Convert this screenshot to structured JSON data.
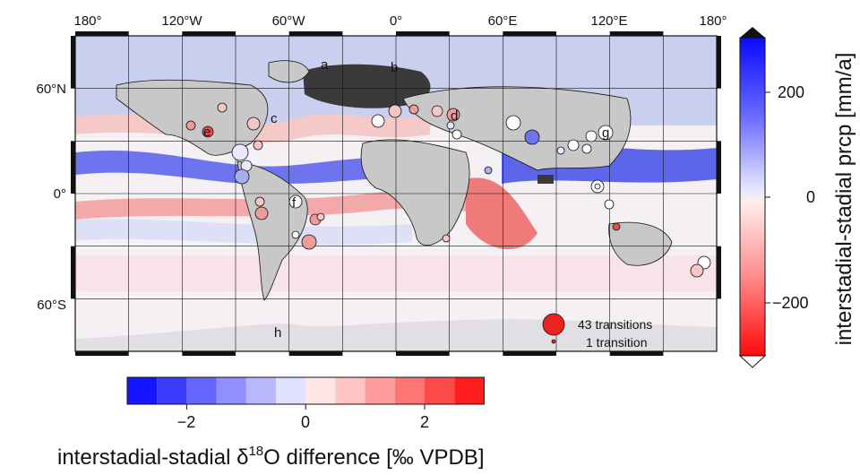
{
  "map": {
    "top_ticks": [
      "180°",
      "120°W",
      "60°W",
      "0°",
      "60°E",
      "120°E",
      "180°"
    ],
    "left_ticks": [
      "60°N",
      "0°",
      "60°S"
    ],
    "region_letters": [
      "a",
      "b",
      "c",
      "d",
      "e",
      "f",
      "g",
      "h"
    ],
    "legend": {
      "large": "43 transitions",
      "small": "1 transition"
    }
  },
  "colorbar_right": {
    "label": "interstadial-stadial prcp [mm/a]",
    "ticks": [
      "200",
      "0",
      "−200"
    ]
  },
  "colorbar_bottom": {
    "label_prefix": "interstadial-stadial δ",
    "label_sup": "18",
    "label_suffix": "O difference [‰ VPDB]",
    "ticks": [
      "−2",
      "0",
      "2"
    ]
  },
  "colors": {
    "blue_strong": "#1a1aff",
    "red_strong": "#ff1a1a",
    "land": "#c8c8c8",
    "ice": "#3a3a3a"
  }
}
